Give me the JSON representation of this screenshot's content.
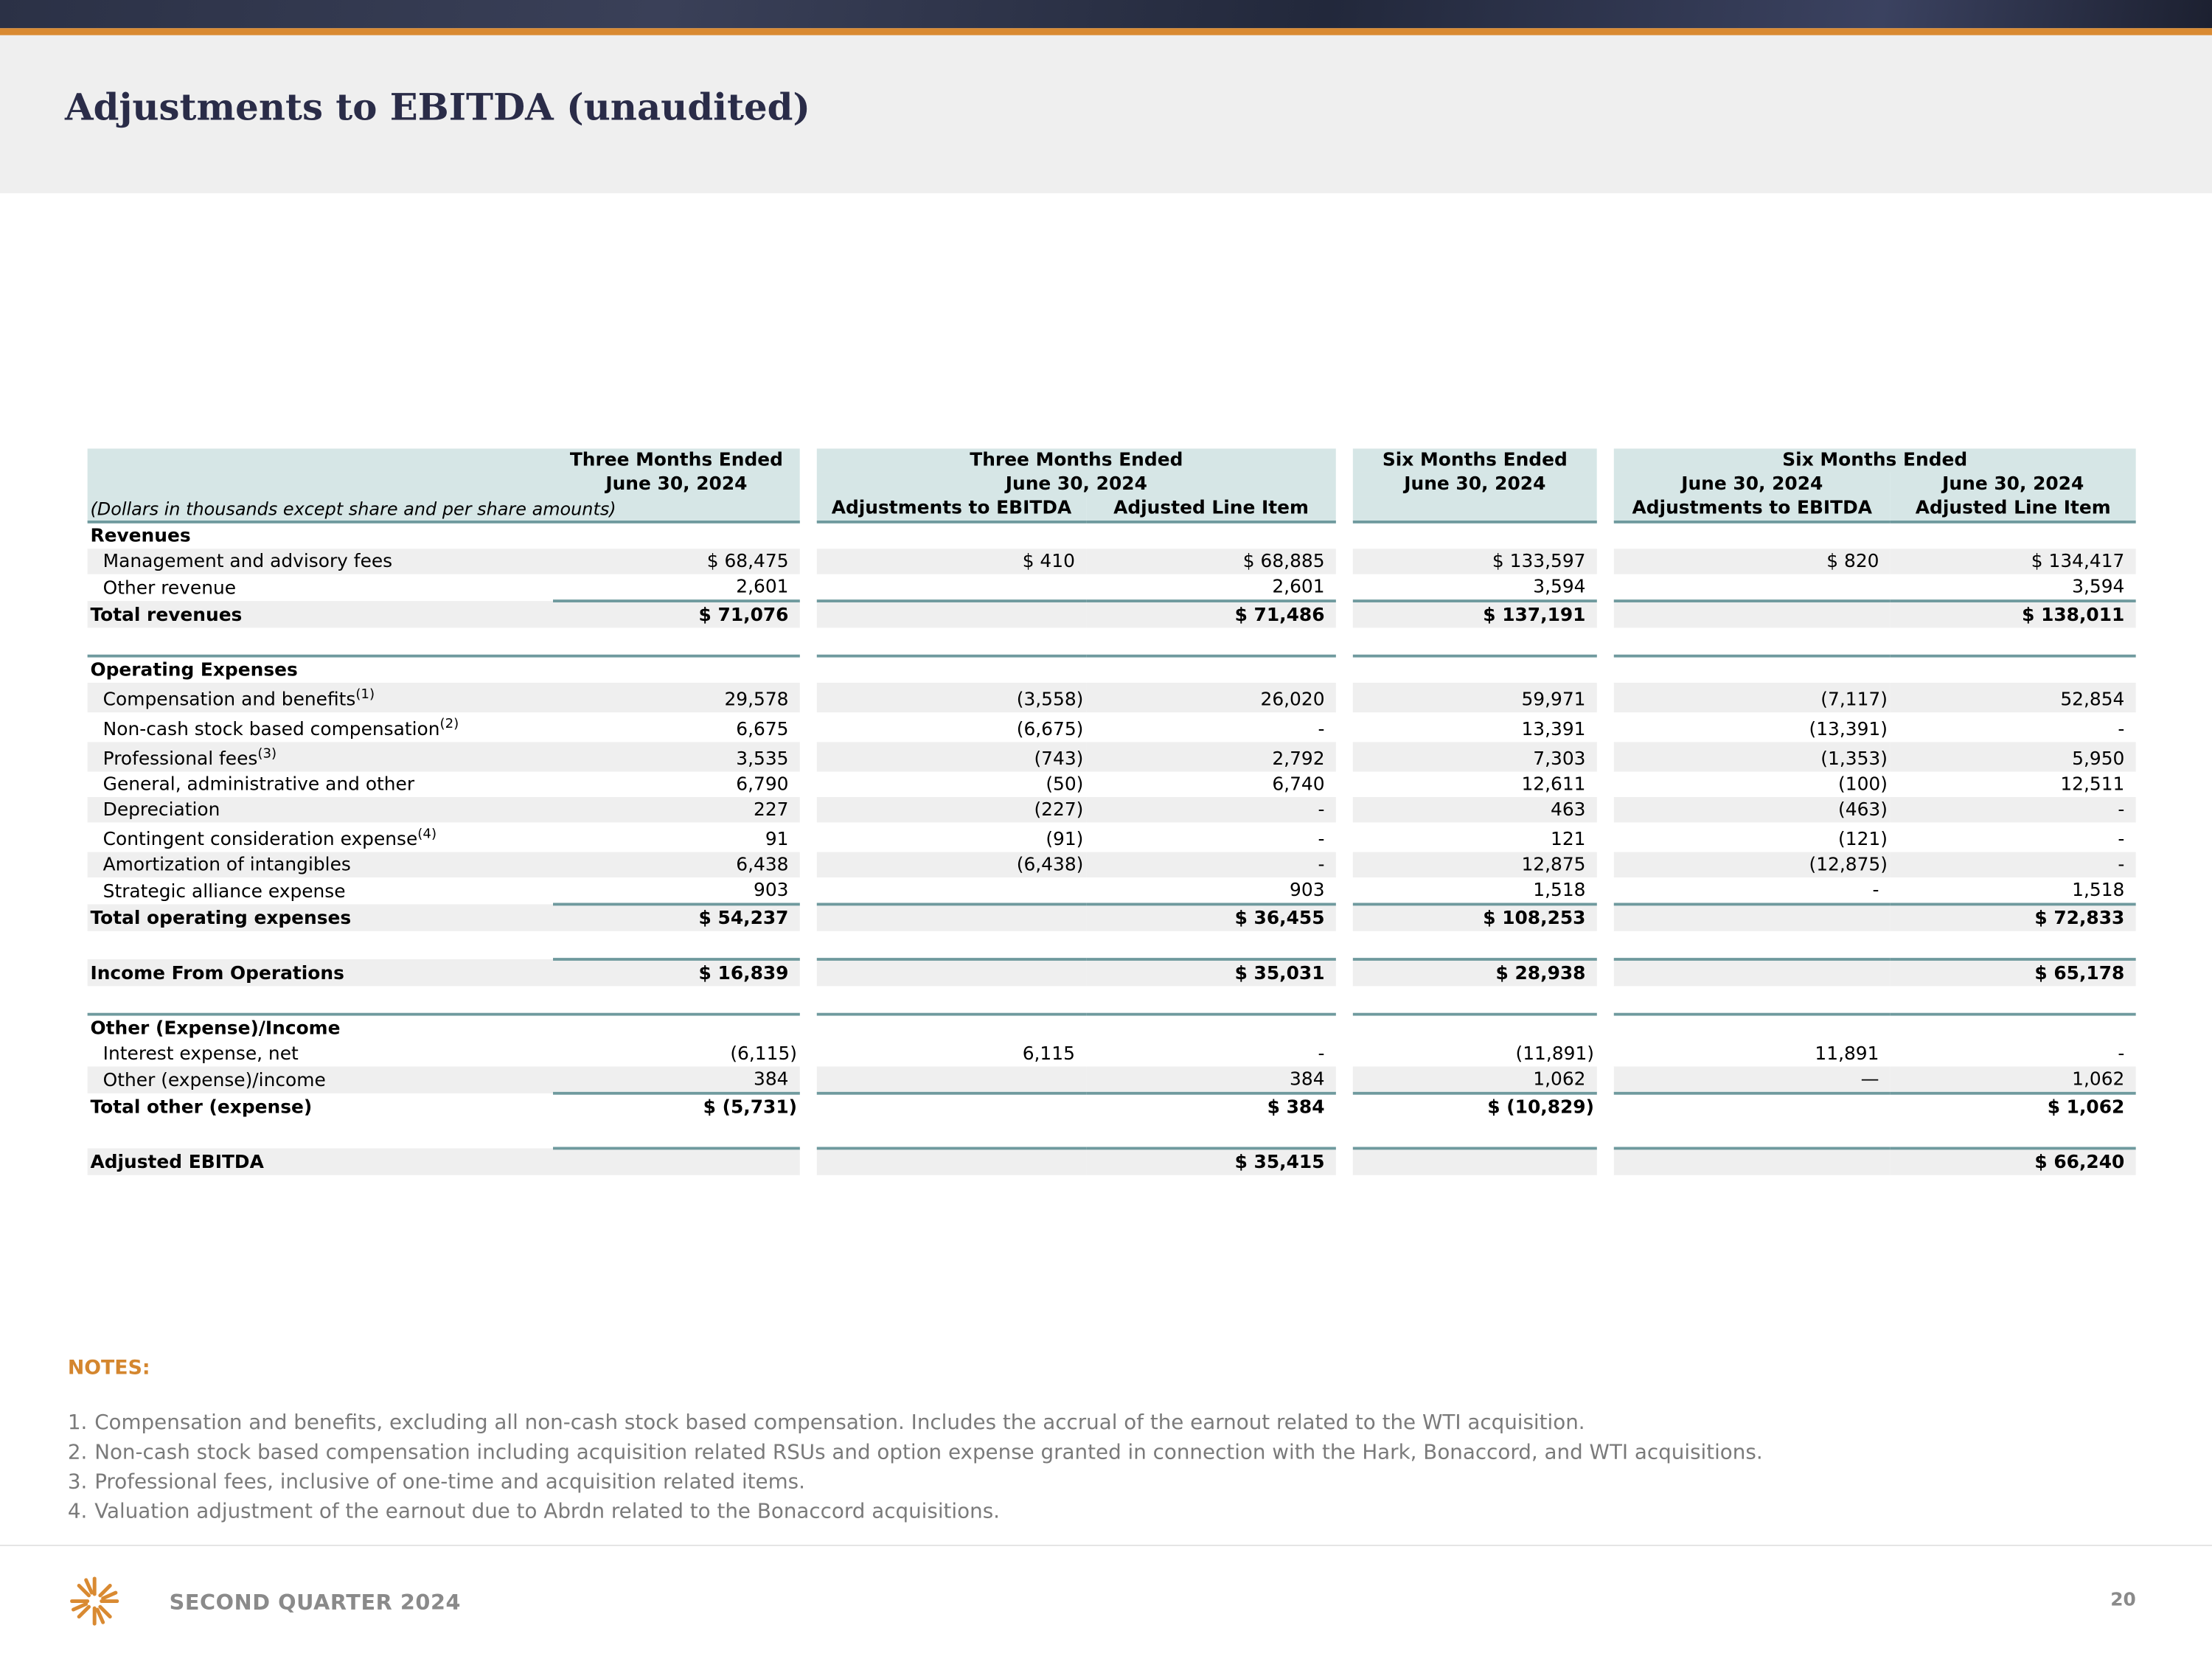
{
  "header": {
    "title": "Adjustments to EBITDA (unaudited)"
  },
  "table": {
    "caption": "(Dollars in thousands except share and per share amounts)",
    "columns": [
      {
        "period": "Three Months Ended",
        "date": "June 30, 2024"
      },
      {
        "period": "Three Months Ended",
        "date": "June 30, 2024",
        "subcolumns": [
          "Adjustments to EBITDA",
          "Adjusted Line Item"
        ]
      },
      {
        "period": "Six Months Ended",
        "date": "June 30, 2024"
      },
      {
        "period": "Six Months Ended",
        "dates": [
          "June 30, 2024",
          "June 30, 2024"
        ],
        "subcolumns": [
          "Adjustments to EBITDA",
          "Adjusted Line Item"
        ]
      }
    ],
    "rows": [
      {
        "label": "Revenues"
      },
      {
        "label": "Management and advisory fees",
        "values": [
          "$ 68,475",
          "$ 410",
          "$ 68,885",
          "$ 133,597",
          "$ 820",
          "$ 134,417"
        ]
      },
      {
        "label": "Other revenue",
        "values": [
          "2,601",
          null,
          "2,601",
          "3,594",
          null,
          "3,594"
        ]
      },
      {
        "label": "Total revenues",
        "values": [
          "$ 71,076",
          null,
          "$ 71,486",
          "$ 137,191",
          null,
          "$ 138,011"
        ]
      },
      {
        "label": "Operating Expenses"
      },
      {
        "label": "Compensation and benefits",
        "note": "(1)",
        "values": [
          "29,578",
          "(3,558)",
          "26,020",
          "59,971",
          "(7,117)",
          "52,854"
        ]
      },
      {
        "label": "Non-cash stock based compensation",
        "note": "(2)",
        "values": [
          "6,675",
          "(6,675)",
          "-",
          "13,391",
          "(13,391)",
          "-"
        ]
      },
      {
        "label": "Professional fees",
        "note": "(3)",
        "values": [
          "3,535",
          "(743)",
          "2,792",
          "7,303",
          "(1,353)",
          "5,950"
        ]
      },
      {
        "label": "General, administrative and other",
        "values": [
          "6,790",
          "(50)",
          "6,740",
          "12,611",
          "(100)",
          "12,511"
        ]
      },
      {
        "label": "Depreciation",
        "values": [
          "227",
          "(227)",
          "-",
          "463",
          "(463)",
          "-"
        ]
      },
      {
        "label": "Contingent consideration expense",
        "note": "(4)",
        "values": [
          "91",
          "(91)",
          "-",
          "121",
          "(121)",
          "-"
        ]
      },
      {
        "label": "Amortization of intangibles",
        "values": [
          "6,438",
          "(6,438)",
          "-",
          "12,875",
          "(12,875)",
          "-"
        ]
      },
      {
        "label": "Strategic alliance expense",
        "values": [
          "903",
          null,
          "903",
          "1,518",
          "-",
          "1,518"
        ]
      },
      {
        "label": "Total operating expenses",
        "values": [
          "$ 54,237",
          null,
          "$ 36,455",
          "$ 108,253",
          null,
          "$ 72,833"
        ]
      },
      {
        "label": "Income From Operations",
        "values": [
          "$ 16,839",
          null,
          "$ 35,031",
          "$ 28,938",
          null,
          "$ 65,178"
        ]
      },
      {
        "label": "Other (Expense)/Income"
      },
      {
        "label": "Interest expense, net",
        "values": [
          "(6,115)",
          "6,115",
          "-",
          "(11,891)",
          "11,891",
          "-"
        ]
      },
      {
        "label": "Other (expense)/income",
        "values": [
          "384",
          null,
          "384",
          "1,062",
          "—",
          "1,062"
        ]
      },
      {
        "label": "Total other (expense)",
        "values": [
          "$ (5,731)",
          null,
          "$ 384",
          "$ (10,829)",
          null,
          "$ 1,062"
        ]
      },
      {
        "label": "Adjusted EBITDA",
        "values": [
          null,
          null,
          "$ 35,415",
          null,
          null,
          "$ 66,240"
        ]
      }
    ]
  },
  "notes": {
    "title": "NOTES:",
    "items": [
      {
        "number": "1.",
        "text": "Compensation and benefits, excluding all non-cash stock based compensation. Includes the accrual of the earnout related to the WTI acquisition."
      },
      {
        "number": "2.",
        "text": "Non-cash stock based compensation including acquisition related RSUs and option expense granted in connection with the Hark, Bonaccord, and WTI acquisitions."
      },
      {
        "number": "3.",
        "text": "Professional fees, inclusive of one-time and acquisition related items."
      },
      {
        "number": "4.",
        "text": "Valuation adjustment of the earnout due to Abrdn related to the Bonaccord acquisitions."
      }
    ]
  },
  "footer": {
    "label": "SECOND QUARTER 2024",
    "page": "20"
  }
}
